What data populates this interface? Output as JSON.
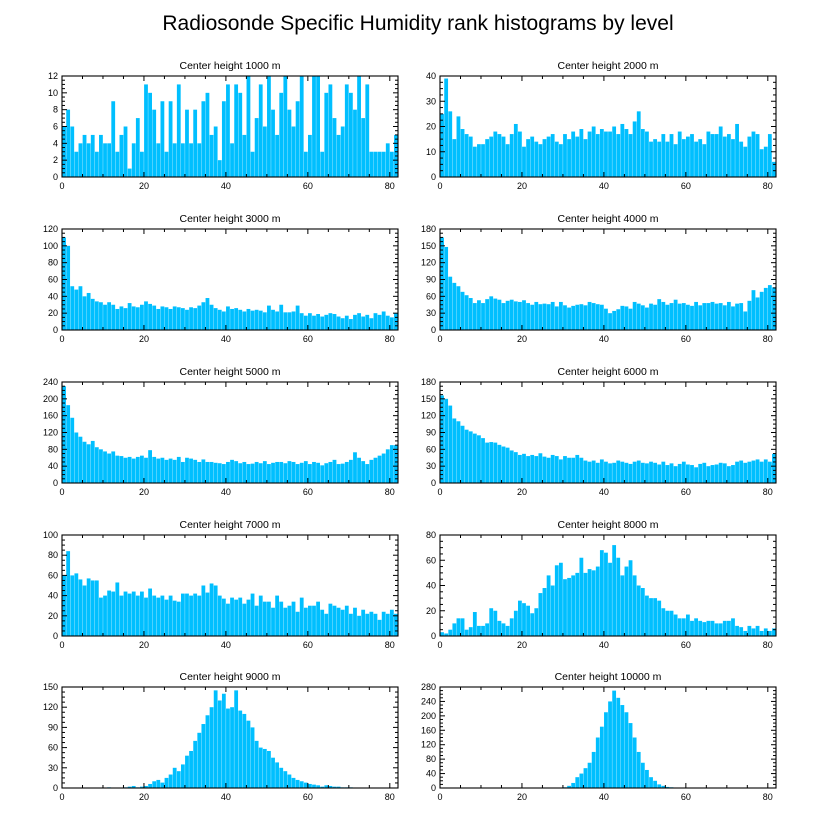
{
  "title": "Radiosonde Specific Humidity rank histograms by level",
  "chart_data": [
    {
      "type": "bar",
      "title": "Center height 1000 m",
      "xlim": [
        0,
        82
      ],
      "ylim": [
        0,
        12
      ],
      "xticks": [
        0,
        20,
        40,
        60,
        80
      ],
      "yticks": [
        0,
        2,
        4,
        6,
        8,
        10,
        12
      ],
      "tick_side": "left",
      "values": [
        6,
        8,
        6,
        3,
        4,
        5,
        4,
        5,
        3,
        5,
        4,
        4,
        9,
        3,
        5,
        6,
        1,
        4,
        7,
        3,
        11,
        10,
        8,
        4,
        9,
        3,
        9,
        4,
        11,
        4,
        8,
        4,
        8,
        4,
        9,
        10,
        5,
        6,
        2,
        9,
        11,
        4,
        11,
        10,
        5,
        12,
        3,
        7,
        11,
        6,
        12,
        8,
        5,
        10,
        12,
        8,
        6,
        9,
        12,
        3,
        5,
        12,
        12,
        3,
        10,
        11,
        7,
        5,
        6,
        11,
        10,
        8,
        12,
        7,
        11,
        3,
        3,
        3,
        3,
        4,
        3,
        5
      ]
    },
    {
      "type": "bar",
      "title": "Center height 2000 m",
      "xlim": [
        0,
        82
      ],
      "ylim": [
        0,
        40
      ],
      "xticks": [
        0,
        20,
        40,
        60,
        80
      ],
      "yticks": [
        0,
        10,
        20,
        30,
        40
      ],
      "tick_side": "left",
      "values": [
        25,
        39,
        26,
        15,
        24,
        19,
        17,
        16,
        12,
        13,
        13,
        15,
        16,
        18,
        17,
        16,
        13,
        17,
        21,
        18,
        12,
        15,
        16,
        14,
        13,
        15,
        16,
        17,
        14,
        13,
        17,
        15,
        18,
        16,
        19,
        15,
        18,
        20,
        17,
        19,
        18,
        18,
        20,
        17,
        21,
        19,
        17,
        22,
        26,
        19,
        18,
        14,
        15,
        14,
        17,
        14,
        17,
        13,
        18,
        15,
        16,
        17,
        14,
        15,
        13,
        18,
        17,
        17,
        20,
        16,
        17,
        15,
        21,
        14,
        12,
        16,
        18,
        17,
        11,
        12,
        17,
        6
      ]
    },
    {
      "type": "bar",
      "title": "Center height 3000 m",
      "xlim": [
        0,
        82
      ],
      "ylim": [
        0,
        120
      ],
      "xticks": [
        0,
        20,
        40,
        60,
        80
      ],
      "yticks": [
        0,
        20,
        40,
        60,
        80,
        100,
        120
      ],
      "tick_side": "left",
      "values": [
        110,
        100,
        52,
        48,
        52,
        40,
        44,
        37,
        34,
        33,
        30,
        33,
        30,
        25,
        28,
        26,
        32,
        28,
        27,
        30,
        34,
        31,
        29,
        25,
        28,
        27,
        25,
        28,
        27,
        26,
        24,
        27,
        26,
        29,
        33,
        38,
        30,
        26,
        24,
        22,
        28,
        25,
        26,
        24,
        22,
        25,
        23,
        24,
        23,
        21,
        29,
        24,
        22,
        30,
        21,
        21,
        22,
        29,
        20,
        17,
        20,
        17,
        19,
        16,
        18,
        20,
        19,
        16,
        14,
        17,
        13,
        18,
        20,
        16,
        18,
        14,
        20,
        18,
        22,
        17,
        15,
        20
      ]
    },
    {
      "type": "bar",
      "title": "Center height 4000 m",
      "xlim": [
        0,
        82
      ],
      "ylim": [
        0,
        180
      ],
      "xticks": [
        0,
        20,
        40,
        60,
        80
      ],
      "yticks": [
        0,
        30,
        60,
        90,
        120,
        150,
        180
      ],
      "tick_side": "left",
      "values": [
        165,
        148,
        95,
        84,
        78,
        68,
        62,
        57,
        48,
        53,
        48,
        55,
        60,
        56,
        54,
        48,
        52,
        54,
        51,
        50,
        53,
        48,
        45,
        50,
        46,
        47,
        46,
        50,
        42,
        50,
        44,
        40,
        43,
        45,
        46,
        44,
        50,
        48,
        46,
        45,
        38,
        30,
        34,
        37,
        43,
        42,
        38,
        50,
        47,
        44,
        40,
        47,
        45,
        55,
        50,
        45,
        48,
        54,
        47,
        48,
        45,
        43,
        50,
        44,
        48,
        48,
        50,
        47,
        48,
        44,
        50,
        42,
        47,
        48,
        33,
        52,
        71,
        58,
        68,
        75,
        80,
        76
      ]
    },
    {
      "type": "bar",
      "title": "Center height 5000 m",
      "xlim": [
        0,
        82
      ],
      "ylim": [
        0,
        240
      ],
      "xticks": [
        0,
        20,
        40,
        60,
        80
      ],
      "yticks": [
        0,
        40,
        80,
        120,
        160,
        200,
        240
      ],
      "tick_side": "left",
      "values": [
        230,
        185,
        155,
        120,
        110,
        98,
        92,
        100,
        85,
        80,
        75,
        70,
        75,
        65,
        64,
        60,
        62,
        58,
        62,
        65,
        60,
        78,
        62,
        58,
        60,
        55,
        58,
        55,
        62,
        50,
        60,
        58,
        55,
        50,
        56,
        50,
        50,
        48,
        47,
        45,
        50,
        55,
        52,
        47,
        50,
        45,
        46,
        50,
        47,
        52,
        45,
        48,
        50,
        50,
        47,
        52,
        50,
        45,
        48,
        52,
        45,
        50,
        48,
        42,
        47,
        50,
        55,
        45,
        46,
        50,
        55,
        73,
        60,
        52,
        45,
        55,
        60,
        65,
        70,
        80,
        90,
        90
      ]
    },
    {
      "type": "bar",
      "title": "Center height 6000 m",
      "xlim": [
        0,
        82
      ],
      "ylim": [
        0,
        180
      ],
      "xticks": [
        0,
        20,
        40,
        60,
        80
      ],
      "yticks": [
        0,
        30,
        60,
        90,
        120,
        150,
        180
      ],
      "tick_side": "left",
      "values": [
        156,
        150,
        138,
        115,
        110,
        102,
        95,
        92,
        88,
        85,
        80,
        72,
        73,
        72,
        68,
        65,
        63,
        58,
        55,
        50,
        52,
        48,
        50,
        48,
        53,
        47,
        45,
        50,
        48,
        42,
        48,
        45,
        45,
        50,
        45,
        40,
        38,
        40,
        36,
        42,
        38,
        35,
        36,
        40,
        38,
        36,
        34,
        38,
        40,
        36,
        35,
        38,
        36,
        33,
        38,
        32,
        35,
        30,
        34,
        38,
        33,
        32,
        28,
        34,
        36,
        30,
        32,
        33,
        36,
        35,
        30,
        32,
        38,
        40,
        36,
        38,
        40,
        42,
        38,
        42,
        38,
        52
      ]
    },
    {
      "type": "bar",
      "title": "Center height 7000 m",
      "xlim": [
        0,
        82
      ],
      "ylim": [
        0,
        100
      ],
      "xticks": [
        0,
        20,
        40,
        60,
        80
      ],
      "yticks": [
        0,
        20,
        40,
        60,
        80,
        100
      ],
      "tick_side": "left",
      "values": [
        60,
        84,
        60,
        62,
        56,
        50,
        57,
        55,
        55,
        38,
        40,
        45,
        44,
        53,
        40,
        44,
        42,
        44,
        40,
        44,
        38,
        47,
        40,
        38,
        40,
        36,
        40,
        35,
        34,
        42,
        42,
        40,
        42,
        40,
        50,
        43,
        52,
        50,
        40,
        37,
        32,
        38,
        36,
        38,
        32,
        36,
        42,
        30,
        40,
        34,
        34,
        28,
        40,
        34,
        28,
        30,
        34,
        24,
        38,
        28,
        30,
        30,
        34,
        26,
        22,
        32,
        30,
        28,
        26,
        30,
        22,
        28,
        20,
        26,
        22,
        24,
        22,
        16,
        24,
        22,
        26,
        22
      ]
    },
    {
      "type": "bar",
      "title": "Center height 8000 m",
      "xlim": [
        0,
        82
      ],
      "ylim": [
        0,
        80
      ],
      "xticks": [
        0,
        20,
        40,
        60,
        80
      ],
      "yticks": [
        0,
        20,
        40,
        60,
        80
      ],
      "tick_side": "right",
      "values": [
        3,
        2,
        5,
        10,
        14,
        14,
        5,
        7,
        19,
        8,
        8,
        10,
        22,
        20,
        12,
        10,
        8,
        14,
        20,
        28,
        26,
        24,
        18,
        22,
        34,
        38,
        48,
        40,
        56,
        58,
        45,
        46,
        48,
        50,
        62,
        50,
        53,
        52,
        55,
        68,
        66,
        58,
        72,
        62,
        48,
        55,
        60,
        48,
        40,
        38,
        32,
        30,
        30,
        28,
        22,
        20,
        20,
        17,
        14,
        14,
        17,
        12,
        14,
        12,
        11,
        12,
        12,
        10,
        10,
        12,
        12,
        14,
        8,
        7,
        4,
        8,
        6,
        8,
        4,
        6,
        4,
        6
      ]
    },
    {
      "type": "bar",
      "title": "Center height 9000 m",
      "xlim": [
        0,
        82
      ],
      "ylim": [
        0,
        150
      ],
      "xticks": [
        0,
        20,
        40,
        60,
        80
      ],
      "yticks": [
        0,
        30,
        60,
        90,
        120,
        150
      ],
      "tick_side": "left",
      "values": [
        0,
        0,
        0,
        0,
        0,
        0,
        0,
        0,
        0,
        0,
        0,
        1,
        0,
        0,
        0,
        1,
        2,
        3,
        1,
        2,
        3,
        6,
        10,
        12,
        8,
        15,
        20,
        30,
        25,
        35,
        48,
        55,
        70,
        82,
        95,
        108,
        120,
        145,
        130,
        140,
        118,
        120,
        145,
        115,
        110,
        100,
        90,
        70,
        60,
        58,
        55,
        45,
        38,
        30,
        25,
        20,
        15,
        12,
        10,
        8,
        6,
        5,
        4,
        2,
        4,
        3,
        2,
        2,
        1,
        1,
        1,
        0,
        0,
        0,
        0,
        0,
        0,
        0,
        0,
        0,
        0,
        0
      ]
    },
    {
      "type": "bar",
      "title": "Center height 10000 m",
      "xlim": [
        0,
        82
      ],
      "ylim": [
        0,
        280
      ],
      "xticks": [
        0,
        20,
        40,
        60,
        80
      ],
      "yticks": [
        0,
        40,
        80,
        120,
        160,
        200,
        240,
        280
      ],
      "tick_side": "left",
      "values": [
        0,
        0,
        0,
        0,
        0,
        0,
        0,
        0,
        0,
        0,
        0,
        0,
        0,
        0,
        0,
        0,
        0,
        0,
        0,
        0,
        0,
        0,
        0,
        0,
        0,
        0,
        0,
        0,
        0,
        1,
        2,
        6,
        14,
        30,
        40,
        55,
        70,
        100,
        140,
        170,
        210,
        240,
        270,
        250,
        230,
        210,
        180,
        140,
        100,
        70,
        50,
        30,
        20,
        10,
        6,
        3,
        2,
        1,
        1,
        0,
        0,
        0,
        0,
        0,
        0,
        0,
        0,
        0,
        0,
        0,
        0,
        0,
        0,
        0,
        0,
        0,
        0,
        0,
        0,
        0,
        0,
        0
      ]
    }
  ]
}
